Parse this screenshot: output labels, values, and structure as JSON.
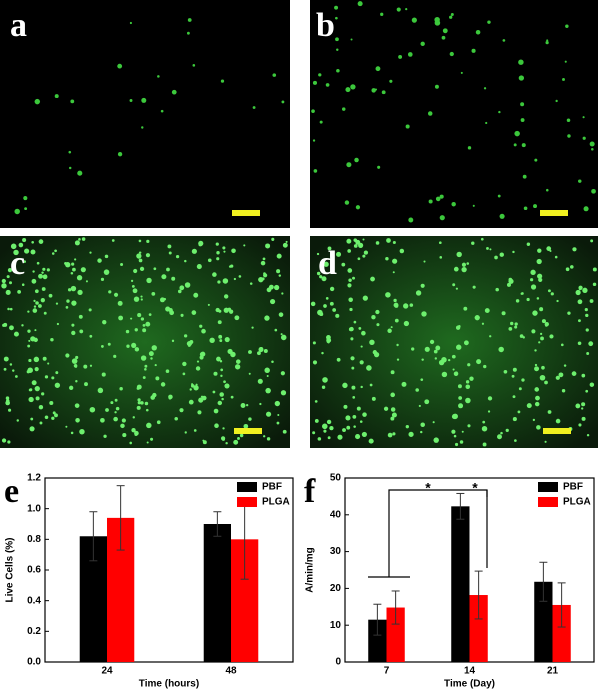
{
  "panels": [
    "a",
    "b",
    "c",
    "d",
    "e",
    "f"
  ],
  "chart_data": [
    {
      "type": "bar",
      "x_label": "Time (hours)",
      "y_label": "Live Cells (%)",
      "categories": [
        "24",
        "48"
      ],
      "series": [
        {
          "name": "PBF",
          "color": "#000000",
          "values": [
            0.82,
            0.9
          ],
          "errors": [
            0.16,
            0.08
          ]
        },
        {
          "name": "PLGA",
          "color": "#ff0000",
          "values": [
            0.94,
            0.8
          ],
          "errors": [
            0.21,
            0.26
          ]
        }
      ],
      "ylim": [
        0,
        1.2
      ],
      "yticks": [
        {
          "value": 0,
          "label": "0.0"
        },
        0.2,
        0.4,
        0.6,
        0.8,
        {
          "value": 1,
          "label": "1.0"
        },
        1.2
      ],
      "legend": "upper right"
    },
    {
      "type": "bar",
      "x_label": "Time (Day)",
      "y_label": "A/min/mg",
      "categories": [
        "7",
        "14",
        "21"
      ],
      "series": [
        {
          "name": "PBF",
          "color": "#000000",
          "values": [
            11.5,
            42.3,
            21.8
          ],
          "errors": [
            4.2,
            3.5,
            5.3
          ]
        },
        {
          "name": "PLGA",
          "color": "#ff0000",
          "values": [
            14.8,
            18.2,
            15.5
          ],
          "errors": [
            4.5,
            6.5,
            6
          ]
        }
      ],
      "ylim": [
        0,
        50
      ],
      "yticks": [
        0,
        10,
        20,
        30,
        40,
        50
      ],
      "annotations": [
        "*",
        "*"
      ],
      "legend": "upper right"
    }
  ]
}
